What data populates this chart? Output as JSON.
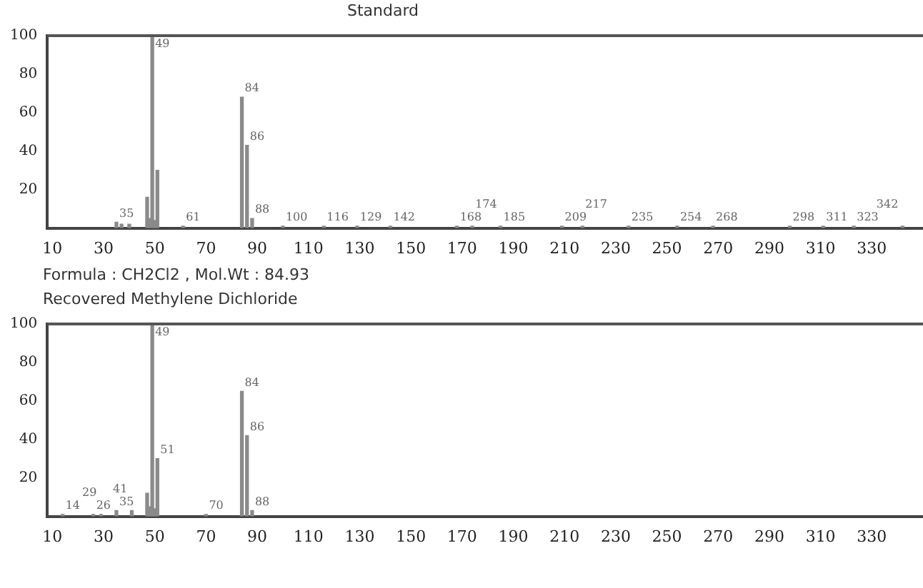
{
  "chart_data": [
    {
      "type": "bar",
      "title": "Standard",
      "color": "#8a8a8a",
      "x": [
        35,
        37,
        40,
        47,
        48,
        49,
        50,
        51,
        61,
        84,
        86,
        88,
        100,
        116,
        129,
        142,
        168,
        174,
        185,
        209,
        217,
        235,
        254,
        268,
        298,
        311,
        323,
        342
      ],
      "values": [
        3,
        2,
        2,
        16,
        5,
        100,
        4,
        30,
        1,
        68,
        43,
        5,
        1,
        1,
        1,
        1,
        1,
        1,
        1,
        1,
        1,
        1,
        1,
        1,
        1,
        1,
        1,
        1
      ],
      "xlim": [
        8,
        350
      ],
      "xticks": [
        10,
        30,
        50,
        70,
        90,
        110,
        130,
        150,
        170,
        190,
        210,
        230,
        250,
        270,
        290,
        310,
        330
      ],
      "ylim": [
        0,
        100
      ],
      "yticks": [
        20,
        40,
        60,
        80,
        100
      ],
      "grid": false,
      "annotations": [
        {
          "text": "35",
          "x": 35,
          "y": 3
        },
        {
          "text": "49",
          "x": 49,
          "y": 100
        },
        {
          "text": "61",
          "x": 61,
          "y": 1
        },
        {
          "text": "84",
          "x": 84,
          "y": 68
        },
        {
          "text": "86",
          "x": 86,
          "y": 43
        },
        {
          "text": "88",
          "x": 88,
          "y": 5
        },
        {
          "text": "100",
          "x": 100,
          "y": 1
        },
        {
          "text": "116",
          "x": 116,
          "y": 1
        },
        {
          "text": "129",
          "x": 129,
          "y": 1
        },
        {
          "text": "142",
          "x": 142,
          "y": 1
        },
        {
          "text": "168",
          "x": 168,
          "y": 1
        },
        {
          "text": "174",
          "x": 174,
          "y": 1
        },
        {
          "text": "185",
          "x": 185,
          "y": 1
        },
        {
          "text": "209",
          "x": 209,
          "y": 1
        },
        {
          "text": "217",
          "x": 217,
          "y": 1
        },
        {
          "text": "235",
          "x": 235,
          "y": 1
        },
        {
          "text": "254",
          "x": 254,
          "y": 1
        },
        {
          "text": "268",
          "x": 268,
          "y": 1
        },
        {
          "text": "298",
          "x": 298,
          "y": 1
        },
        {
          "text": "311",
          "x": 311,
          "y": 1
        },
        {
          "text": "323",
          "x": 323,
          "y": 1
        },
        {
          "text": "342",
          "x": 342,
          "y": 1
        },
        "Formula : CH2Cl2 , Mol.Wt : 84.93"
      ]
    },
    {
      "type": "bar",
      "title": "Recovered Methylene Dichloride",
      "color": "#8a8a8a",
      "x": [
        14,
        26,
        29,
        35,
        41,
        47,
        48,
        49,
        50,
        51,
        70,
        84,
        86,
        88
      ],
      "values": [
        1,
        1,
        1,
        3,
        3,
        12,
        5,
        100,
        4,
        30,
        1,
        65,
        42,
        3
      ],
      "xlim": [
        8,
        350
      ],
      "xticks": [
        10,
        30,
        50,
        70,
        90,
        110,
        130,
        150,
        170,
        190,
        210,
        230,
        250,
        270,
        290,
        310,
        330
      ],
      "ylim": [
        0,
        100
      ],
      "yticks": [
        20,
        40,
        60,
        80,
        100
      ],
      "grid": false,
      "annotations": [
        {
          "text": "14",
          "x": 14,
          "y": 1
        },
        {
          "text": "26",
          "x": 26,
          "y": 1
        },
        {
          "text": "29",
          "x": 29,
          "y": 1
        },
        {
          "text": "35",
          "x": 35,
          "y": 3
        },
        {
          "text": "41",
          "x": 41,
          "y": 3
        },
        {
          "text": "49",
          "x": 49,
          "y": 100
        },
        {
          "text": "51",
          "x": 51,
          "y": 30
        },
        {
          "text": "70",
          "x": 70,
          "y": 1
        },
        {
          "text": "84",
          "x": 84,
          "y": 65
        },
        {
          "text": "86",
          "x": 86,
          "y": 42
        },
        {
          "text": "88",
          "x": 88,
          "y": 3
        }
      ]
    }
  ]
}
